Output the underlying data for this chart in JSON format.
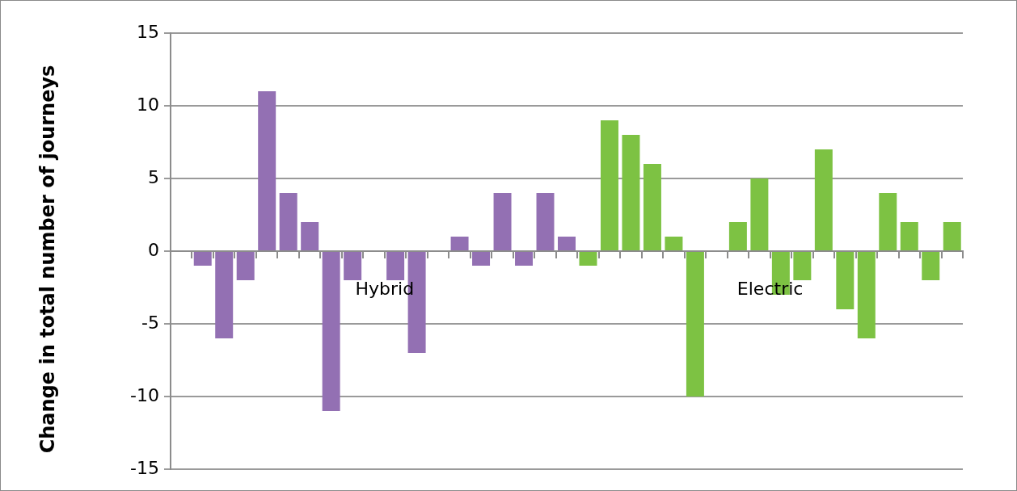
{
  "chart_data": {
    "type": "bar",
    "ylabel": "Change in total number of journeys",
    "categories": [
      null,
      null,
      null,
      null,
      null,
      null,
      null,
      null,
      null,
      null,
      null,
      null,
      null,
      null,
      null,
      null,
      null,
      null,
      null,
      null,
      null,
      null,
      null,
      null,
      null,
      null,
      null,
      null,
      null,
      null,
      null,
      null,
      null,
      null,
      null,
      null,
      null
    ],
    "series": [
      {
        "name": "Hybrid",
        "color": "#9370b3",
        "values": [
          null,
          -1,
          -6,
          -2,
          11,
          4,
          2,
          -11,
          -2,
          0,
          -2,
          -7,
          0,
          1,
          -1,
          4,
          -1,
          4,
          1,
          null,
          null,
          null,
          null,
          null,
          null,
          null,
          null,
          null,
          null,
          null,
          null,
          null,
          null,
          null,
          null,
          null,
          null
        ]
      },
      {
        "name": "Electric",
        "color": "#7dc243",
        "values": [
          null,
          null,
          null,
          null,
          null,
          null,
          null,
          null,
          null,
          null,
          null,
          null,
          null,
          null,
          null,
          null,
          null,
          null,
          null,
          -1,
          9,
          8,
          6,
          1,
          -10,
          0,
          2,
          5,
          -3,
          -2,
          7,
          -4,
          -6,
          4,
          2,
          -2,
          2
        ]
      }
    ],
    "ylim": [
      -15,
      15
    ],
    "yticks": [
      -15,
      -10,
      -5,
      0,
      5,
      10,
      15
    ],
    "grid": "y",
    "legend": false
  }
}
